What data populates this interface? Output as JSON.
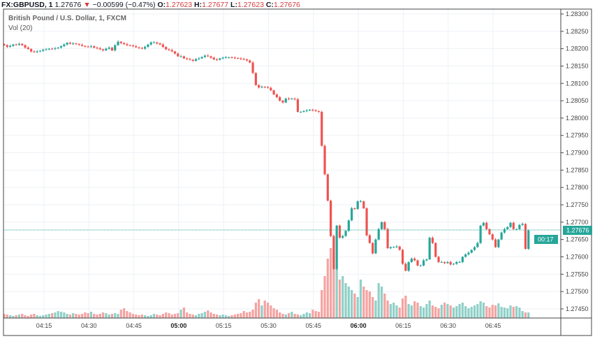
{
  "header": {
    "symbol": "FX:GBPUSD, 1",
    "last": "1.27676",
    "change_icon": "triangle-down-icon",
    "change": "−0.00599 (−0.47%)",
    "o_label": "O:",
    "o": "1.27623",
    "h_label": "H:",
    "h": "1.27677",
    "l_label": "L:",
    "l": "1.27623",
    "c_label": "C:",
    "c": "1.27676"
  },
  "legend": {
    "title": "British Pound / U.S. Dollar, 1, FXCM",
    "volume": "Vol (20)"
  },
  "price_badge": "1.27676",
  "countdown": "00:17",
  "colors": {
    "up": "#26a69a",
    "down": "#ef5350",
    "up_vol": "#8fd0c8",
    "down_vol": "#f5a3a1",
    "last_line": "#26a69a"
  },
  "chart_data": {
    "type": "candlestick",
    "price_ticks": [
      "1.28300",
      "1.28250",
      "1.28200",
      "1.28150",
      "1.28100",
      "1.28050",
      "1.28000",
      "1.27950",
      "1.27900",
      "1.27850",
      "1.27800",
      "1.27750",
      "1.27700",
      "1.27650",
      "1.27600",
      "1.27550",
      "1.27500",
      "1.27450"
    ],
    "time_ticks": [
      {
        "label": "04:15",
        "bold": false
      },
      {
        "label": "04:30",
        "bold": false
      },
      {
        "label": "04:45",
        "bold": false
      },
      {
        "label": "05:00",
        "bold": true
      },
      {
        "label": "05:15",
        "bold": false
      },
      {
        "label": "05:30",
        "bold": false
      },
      {
        "label": "05:45",
        "bold": false
      },
      {
        "label": "06:00",
        "bold": true
      },
      {
        "label": "06:15",
        "bold": false
      },
      {
        "label": "06:30",
        "bold": false
      },
      {
        "label": "06:45",
        "bold": false
      }
    ],
    "ylim": [
      1.2743,
      1.2832
    ],
    "grid": true,
    "interval_minutes": 1,
    "closes": [
      1.2821,
      1.28205,
      1.28208,
      1.28212,
      1.28211,
      1.28214,
      1.2821,
      1.28203,
      1.28199,
      1.28192,
      1.2819,
      1.28192,
      1.28194,
      1.28197,
      1.28198,
      1.282,
      1.28199,
      1.28201,
      1.28203,
      1.28207,
      1.28212,
      1.28217,
      1.28214,
      1.28215,
      1.28213,
      1.28211,
      1.28208,
      1.28206,
      1.28205,
      1.28207,
      1.28203,
      1.28201,
      1.28198,
      1.28195,
      1.282,
      1.28203,
      1.28195,
      1.2821,
      1.2822,
      1.28216,
      1.28213,
      1.2821,
      1.28209,
      1.28207,
      1.28204,
      1.28202,
      1.282,
      1.28205,
      1.28212,
      1.28218,
      1.28218,
      1.28215,
      1.28212,
      1.28205,
      1.28198,
      1.28196,
      1.28192,
      1.28186,
      1.28178,
      1.28178,
      1.28172,
      1.2817,
      1.28168,
      1.28165,
      1.2817,
      1.28172,
      1.28176,
      1.2818,
      1.28178,
      1.28174,
      1.28169,
      1.28168,
      1.28172,
      1.28174,
      1.28175,
      1.28175,
      1.28174,
      1.28173,
      1.28172,
      1.2817,
      1.28169,
      1.28166,
      1.2816,
      1.2813,
      1.28095,
      1.28088,
      1.2809,
      1.28089,
      1.28087,
      1.2808,
      1.28068,
      1.2806,
      1.2805,
      1.28045,
      1.28056,
      1.28055,
      1.28056,
      1.28054,
      1.28018,
      1.28018,
      1.2802,
      1.28022,
      1.28024,
      1.28022,
      1.2802,
      1.28018,
      1.2792,
      1.27838,
      1.27762,
      1.2766,
      1.27565,
      1.2769,
      1.27655,
      1.2766,
      1.27675,
      1.27705,
      1.2774,
      1.27738,
      1.2776,
      1.2776,
      1.2774,
      1.27662,
      1.2764,
      1.2761,
      1.2765,
      1.2768,
      1.277,
      1.2768,
      1.27625,
      1.27628,
      1.27628,
      1.2763,
      1.2762,
      1.2758,
      1.2756,
      1.27585,
      1.27595,
      1.2759,
      1.27575,
      1.27575,
      1.2759,
      1.27593,
      1.27655,
      1.2764,
      1.276,
      1.27585,
      1.27585,
      1.27582,
      1.27585,
      1.27578,
      1.2758,
      1.27585,
      1.27585,
      1.276,
      1.27607,
      1.27612,
      1.2762,
      1.27628,
      1.2764,
      1.2769,
      1.27698,
      1.2768,
      1.27665,
      1.2765,
      1.27628,
      1.2765,
      1.2767,
      1.2768,
      1.27686,
      1.27698,
      1.2768,
      1.2768,
      1.27692,
      1.27695,
      1.27623,
      1.27676
    ],
    "volumes": [
      6,
      5,
      4,
      3,
      4,
      5,
      6,
      4,
      3,
      5,
      6,
      4,
      3,
      4,
      5,
      6,
      7,
      8,
      10,
      9,
      8,
      6,
      5,
      7,
      6,
      5,
      6,
      8,
      7,
      9,
      6,
      5,
      6,
      8,
      7,
      5,
      6,
      7,
      6,
      12,
      14,
      10,
      8,
      6,
      5,
      4,
      5,
      4,
      3,
      4,
      6,
      5,
      4,
      6,
      8,
      7,
      5,
      6,
      7,
      12,
      15,
      8,
      6,
      5,
      4,
      6,
      7,
      9,
      11,
      8,
      6,
      5,
      4,
      5,
      4,
      3,
      4,
      5,
      6,
      7,
      10,
      8,
      9,
      12,
      22,
      27,
      18,
      25,
      22,
      18,
      14,
      12,
      8,
      6,
      5,
      7,
      9,
      6,
      5,
      4,
      6,
      8,
      7,
      12,
      10,
      9,
      40,
      60,
      85,
      100,
      95,
      70,
      55,
      60,
      50,
      45,
      40,
      35,
      30,
      55,
      45,
      40,
      38,
      30,
      25,
      50,
      45,
      35,
      25,
      20,
      22,
      18,
      15,
      28,
      32,
      20,
      18,
      24,
      22,
      17,
      15,
      20,
      25,
      18,
      16,
      14,
      19,
      22,
      20,
      18,
      15,
      17,
      20,
      22,
      17,
      14,
      16,
      18,
      20,
      24,
      22,
      17,
      15,
      19,
      18,
      21,
      16,
      15,
      14,
      18,
      16,
      17,
      15,
      10,
      8,
      8
    ]
  }
}
